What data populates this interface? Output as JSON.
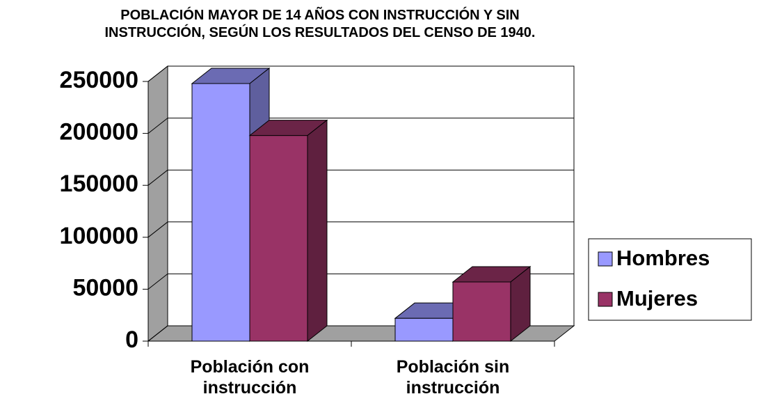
{
  "chart_data": {
    "type": "bar3d",
    "title": "POBLACIÓN MAYOR DE 14 AÑOS CON INSTRUCCIÓN Y SIN\nINSTRUCCIÓN, SEGÚN LOS RESULTADOS DEL CENSO DE 1940.",
    "categories": [
      "Población con\ninstrucción",
      "Población sin\ninstrucción"
    ],
    "series": [
      {
        "name": "Hombres",
        "color": "#9999ff",
        "values": [
          248000,
          22000
        ]
      },
      {
        "name": "Mujeres",
        "color": "#993366",
        "values": [
          198000,
          57000
        ]
      }
    ],
    "ylim": [
      0,
      250000
    ],
    "yticks": [
      0,
      50000,
      100000,
      150000,
      200000,
      250000
    ],
    "grid": true,
    "legend": "right"
  }
}
